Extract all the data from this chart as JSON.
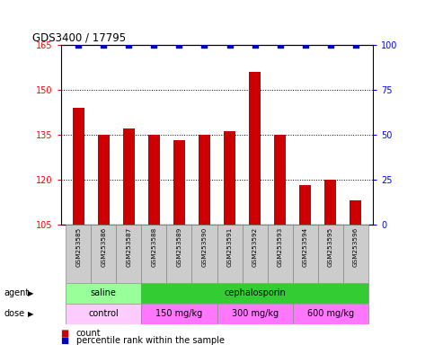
{
  "title": "GDS3400 / 17795",
  "samples": [
    "GSM253585",
    "GSM253586",
    "GSM253587",
    "GSM253588",
    "GSM253589",
    "GSM253590",
    "GSM253591",
    "GSM253592",
    "GSM253593",
    "GSM253594",
    "GSM253595",
    "GSM253596"
  ],
  "bar_values": [
    144,
    135,
    137,
    135,
    133,
    135,
    136,
    156,
    135,
    118,
    120,
    113
  ],
  "percentile_values": [
    100,
    100,
    100,
    100,
    100,
    100,
    100,
    100,
    100,
    100,
    100,
    100
  ],
  "bar_color": "#cc0000",
  "dot_color": "#0000cc",
  "ylim_left": [
    105,
    165
  ],
  "yticks_left": [
    105,
    120,
    135,
    150,
    165
  ],
  "ylim_right": [
    0,
    100
  ],
  "yticks_right": [
    0,
    25,
    50,
    75,
    100
  ],
  "agent_labels": [
    {
      "label": "saline",
      "span": [
        0,
        3
      ],
      "color": "#99ff99"
    },
    {
      "label": "cephalosporin",
      "span": [
        3,
        12
      ],
      "color": "#33cc33"
    }
  ],
  "dose_labels": [
    {
      "label": "control",
      "span": [
        0,
        3
      ],
      "color": "#ffccff"
    },
    {
      "label": "150 mg/kg",
      "span": [
        3,
        6
      ],
      "color": "#ff77ff"
    },
    {
      "label": "300 mg/kg",
      "span": [
        6,
        9
      ],
      "color": "#ff77ff"
    },
    {
      "label": "600 mg/kg",
      "span": [
        9,
        12
      ],
      "color": "#ff77ff"
    }
  ],
  "legend_count_label": "count",
  "legend_pct_label": "percentile rank within the sample",
  "agent_row_label": "agent",
  "dose_row_label": "dose",
  "bg_color": "#ffffff",
  "sample_bg_color": "#cccccc",
  "grid_color": "#000000"
}
